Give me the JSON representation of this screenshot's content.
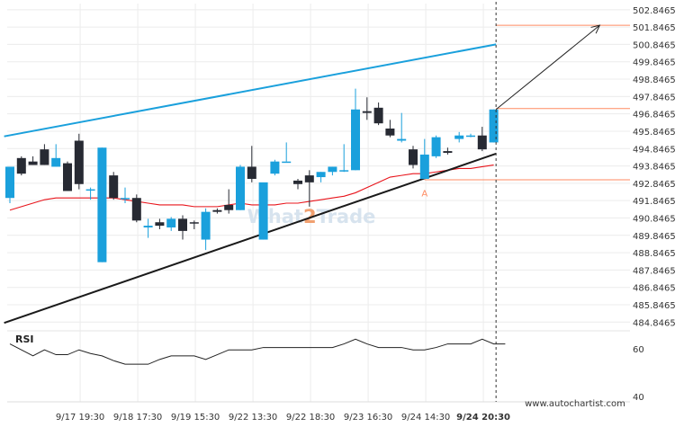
{
  "chart_data": [
    {
      "type": "candlestick",
      "title": "",
      "watermark": {
        "part1": "What",
        "part2": "2",
        "part3": "Trade"
      },
      "y_axis": {
        "side": "right",
        "range": [
          484.5,
          503.2
        ],
        "ticks": [
          "502.8465",
          "501.8465",
          "500.8465",
          "499.8465",
          "498.8465",
          "497.8465",
          "496.8465",
          "495.8465",
          "494.8465",
          "493.8465",
          "492.8465",
          "491.8465",
          "490.8465",
          "489.8465",
          "488.8465",
          "487.8465",
          "486.8465",
          "485.8465",
          "484.8465"
        ]
      },
      "x_axis": {
        "labels": [
          "9/17 19:30",
          "9/18 17:30",
          "9/19 15:30",
          "9/22 13:30",
          "9/22 18:30",
          "9/23 16:30",
          "9/24 14:30",
          "9/24 20:30"
        ],
        "label_bar_index": [
          6.1,
          11.1,
          16.1,
          21.1,
          26.1,
          31.1,
          36.1,
          41.1
        ]
      },
      "candles": [
        {
          "o": 492.0,
          "h": 493.8,
          "l": 491.7,
          "c": 493.8,
          "dir": "up"
        },
        {
          "o": 493.4,
          "h": 494.4,
          "l": 493.3,
          "c": 494.3,
          "dir": "down"
        },
        {
          "o": 494.1,
          "h": 494.4,
          "l": 493.9,
          "c": 493.9,
          "dir": "down"
        },
        {
          "o": 494.8,
          "h": 495.1,
          "l": 493.9,
          "c": 493.9,
          "dir": "down"
        },
        {
          "o": 493.8,
          "h": 495.1,
          "l": 493.8,
          "c": 494.3,
          "dir": "up"
        },
        {
          "o": 494.0,
          "h": 494.1,
          "l": 492.4,
          "c": 492.4,
          "dir": "down"
        },
        {
          "o": 495.3,
          "h": 495.7,
          "l": 492.5,
          "c": 492.8,
          "dir": "down"
        },
        {
          "o": 492.5,
          "h": 492.6,
          "l": 491.9,
          "c": 492.5,
          "dir": "up"
        },
        {
          "o": 488.3,
          "h": 494.9,
          "l": 488.3,
          "c": 494.9,
          "dir": "up"
        },
        {
          "o": 493.3,
          "h": 493.5,
          "l": 491.9,
          "c": 492.0,
          "dir": "down"
        },
        {
          "o": 492.0,
          "h": 492.6,
          "l": 491.7,
          "c": 492.0,
          "dir": "up"
        },
        {
          "o": 492.0,
          "h": 492.2,
          "l": 490.6,
          "c": 490.7,
          "dir": "down"
        },
        {
          "o": 490.4,
          "h": 490.8,
          "l": 489.7,
          "c": 490.3,
          "dir": "up"
        },
        {
          "o": 490.6,
          "h": 490.8,
          "l": 490.2,
          "c": 490.4,
          "dir": "down"
        },
        {
          "o": 490.3,
          "h": 490.9,
          "l": 490.1,
          "c": 490.8,
          "dir": "up"
        },
        {
          "o": 490.8,
          "h": 491.0,
          "l": 489.6,
          "c": 490.1,
          "dir": "down"
        },
        {
          "o": 490.6,
          "h": 490.7,
          "l": 490.2,
          "c": 490.6,
          "dir": "down"
        },
        {
          "o": 489.6,
          "h": 491.4,
          "l": 489.0,
          "c": 491.2,
          "dir": "up"
        },
        {
          "o": 491.3,
          "h": 491.4,
          "l": 491.1,
          "c": 491.2,
          "dir": "down"
        },
        {
          "o": 491.3,
          "h": 492.5,
          "l": 491.1,
          "c": 491.6,
          "dir": "down"
        },
        {
          "o": 491.3,
          "h": 493.9,
          "l": 491.3,
          "c": 493.8,
          "dir": "up"
        },
        {
          "o": 493.8,
          "h": 495.0,
          "l": 492.9,
          "c": 493.1,
          "dir": "down"
        },
        {
          "o": 489.6,
          "h": 492.8,
          "l": 489.6,
          "c": 492.9,
          "dir": "up"
        },
        {
          "o": 493.4,
          "h": 494.2,
          "l": 493.3,
          "c": 494.1,
          "dir": "up"
        },
        {
          "o": 494.1,
          "h": 495.2,
          "l": 494.1,
          "c": 494.1,
          "dir": "up"
        },
        {
          "o": 493.0,
          "h": 493.1,
          "l": 492.5,
          "c": 492.8,
          "dir": "down"
        },
        {
          "o": 492.9,
          "h": 493.6,
          "l": 491.5,
          "c": 493.3,
          "dir": "down"
        },
        {
          "o": 493.2,
          "h": 493.5,
          "l": 492.9,
          "c": 493.5,
          "dir": "up"
        },
        {
          "o": 493.5,
          "h": 493.8,
          "l": 493.3,
          "c": 493.8,
          "dir": "up"
        },
        {
          "o": 493.6,
          "h": 495.1,
          "l": 493.5,
          "c": 493.6,
          "dir": "up"
        },
        {
          "o": 493.6,
          "h": 498.3,
          "l": 493.6,
          "c": 497.1,
          "dir": "up"
        },
        {
          "o": 496.9,
          "h": 497.8,
          "l": 496.5,
          "c": 497.0,
          "dir": "down"
        },
        {
          "o": 497.2,
          "h": 497.5,
          "l": 496.2,
          "c": 496.3,
          "dir": "down"
        },
        {
          "o": 496.0,
          "h": 496.5,
          "l": 495.5,
          "c": 495.6,
          "dir": "down"
        },
        {
          "o": 495.4,
          "h": 496.9,
          "l": 495.2,
          "c": 495.3,
          "dir": "up"
        },
        {
          "o": 494.8,
          "h": 495.0,
          "l": 493.7,
          "c": 493.9,
          "dir": "down"
        },
        {
          "o": 493.1,
          "h": 495.4,
          "l": 493.1,
          "c": 494.5,
          "dir": "up"
        },
        {
          "o": 494.4,
          "h": 495.6,
          "l": 494.3,
          "c": 495.5,
          "dir": "up"
        },
        {
          "o": 494.7,
          "h": 494.9,
          "l": 494.5,
          "c": 494.6,
          "dir": "down"
        },
        {
          "o": 495.4,
          "h": 495.8,
          "l": 495.2,
          "c": 495.6,
          "dir": "up"
        },
        {
          "o": 495.6,
          "h": 495.7,
          "l": 495.5,
          "c": 495.6,
          "dir": "up"
        },
        {
          "o": 495.6,
          "h": 496.1,
          "l": 494.7,
          "c": 494.8,
          "dir": "down"
        },
        {
          "o": 495.2,
          "h": 497.1,
          "l": 495.2,
          "c": 497.1,
          "dir": "up"
        }
      ],
      "moving_average": {
        "color": "#e8141b",
        "values": [
          491.3,
          491.5,
          491.7,
          491.9,
          492.0,
          492.0,
          492.0,
          492.0,
          492.0,
          492.0,
          491.9,
          491.8,
          491.7,
          491.6,
          491.6,
          491.6,
          491.5,
          491.5,
          491.5,
          491.6,
          491.7,
          491.6,
          491.6,
          491.6,
          491.7,
          491.7,
          491.8,
          491.9,
          492.0,
          492.1,
          492.3,
          492.6,
          492.9,
          493.2,
          493.3,
          493.4,
          493.4,
          493.5,
          493.6,
          493.7,
          493.7,
          493.8,
          493.9
        ]
      },
      "trend_lines": [
        {
          "role": "resistance",
          "color": "#1aa0dc",
          "from": {
            "bar": -0.5,
            "price": 495.55
          },
          "to": {
            "bar": 42.2,
            "price": 500.85
          }
        },
        {
          "role": "support",
          "color": "#1a1a1a",
          "from": {
            "bar": -0.5,
            "price": 484.8
          },
          "to": {
            "bar": 42.2,
            "price": 494.55
          }
        }
      ],
      "horizontal_levels": [
        {
          "price": 501.95,
          "color": "#ff8a60",
          "from_bar": 42.2
        },
        {
          "price": 497.15,
          "color": "#ff8a60",
          "from_bar": 42.2
        },
        {
          "price": 493.05,
          "color": "#ff8a60",
          "from_bar": 36
        }
      ],
      "forecast_arrow": {
        "color": "#222222",
        "from": {
          "bar": 42.2,
          "price": 497.1
        },
        "to": {
          "bar": 51.2,
          "price": 501.95
        }
      },
      "current_bar_marker": {
        "bar": 42.2,
        "style": "dashed"
      },
      "pattern_marker": {
        "label": "A",
        "bar": 36.0,
        "price": 492.6
      },
      "colors": {
        "up": "#1aa0dc",
        "down": "#272a33"
      }
    },
    {
      "type": "line",
      "label": "RSI",
      "y_ticks": [
        {
          "value": 60,
          "label": "60"
        },
        {
          "value": 40,
          "label": "40"
        }
      ],
      "range": [
        38.5,
        70.5
      ],
      "color": "#222222",
      "values": [
        62,
        59.5,
        57,
        59.5,
        57.5,
        57.5,
        59.5,
        58,
        57,
        55,
        53.5,
        53.5,
        53.5,
        55.5,
        57,
        57,
        57,
        55.5,
        57.5,
        59.5,
        59.5,
        59.5,
        60.5,
        60.5,
        60.5,
        60.5,
        60.5,
        60.5,
        60.5,
        62,
        64,
        62,
        60.5,
        60.5,
        60.5,
        59.5,
        59.5,
        60.5,
        62,
        62,
        62,
        64,
        62,
        62
      ]
    }
  ],
  "footer": {
    "site": "www.autochartist.com"
  }
}
